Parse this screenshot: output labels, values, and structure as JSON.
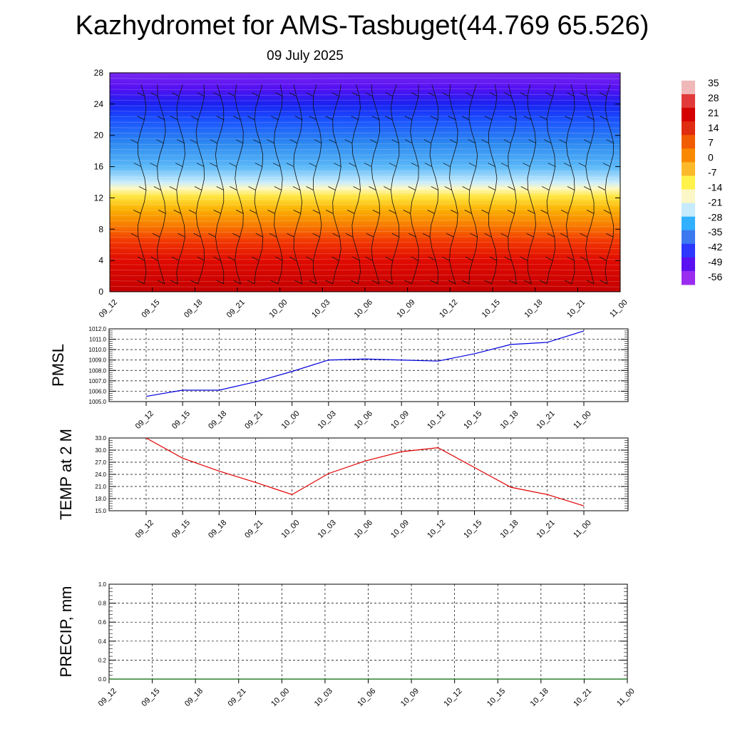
{
  "title": "Kazhydromet for AMS-Tasbuget(44.769 65.526)",
  "subtitle": "09 July 2025",
  "colors": {
    "pmsl_line": "#0000dd",
    "temp_line": "#e00000",
    "precip_line": "#006400",
    "grid": "#000000"
  },
  "chart_data": [
    {
      "type": "heatmap",
      "name": "vertical-profile",
      "x_ticks": [
        "09_12",
        "09_15",
        "09_18",
        "09_21",
        "10_00",
        "10_03",
        "10_06",
        "10_09",
        "10_12",
        "10_15",
        "10_18",
        "10_21",
        "11_00"
      ],
      "y_ticks": [
        "0",
        "4",
        "8",
        "12",
        "16",
        "20",
        "24",
        "28"
      ],
      "ylim": [
        0,
        28
      ],
      "colorbar_labels": [
        "35",
        "28",
        "21",
        "14",
        "7",
        "0",
        "-7",
        "-14",
        "-21",
        "-28",
        "-35",
        "-42",
        "-49",
        "-56"
      ],
      "colorbar_colors": [
        "#f0b8b8",
        "#e23a3a",
        "#d40000",
        "#e02c10",
        "#f25c00",
        "#f98a00",
        "#fcba2a",
        "#fff24a",
        "#fcf7c6",
        "#c6ebfc",
        "#30b0ff",
        "#3c78f0",
        "#2c38ff",
        "#5a10f0",
        "#9a2cf0"
      ],
      "band_stops": [
        {
          "h": 0,
          "color": "#c40000"
        },
        {
          "h": 4,
          "color": "#e00a00"
        },
        {
          "h": 6.5,
          "color": "#f23800"
        },
        {
          "h": 8.5,
          "color": "#f87c00"
        },
        {
          "h": 10.5,
          "color": "#fbb000"
        },
        {
          "h": 12.2,
          "color": "#ffe640"
        },
        {
          "h": 13.2,
          "color": "#fff8c0"
        },
        {
          "h": 14,
          "color": "#c8ecfc"
        },
        {
          "h": 16,
          "color": "#5ab8f8"
        },
        {
          "h": 19,
          "color": "#2c88f0"
        },
        {
          "h": 22,
          "color": "#1a50ff"
        },
        {
          "h": 24,
          "color": "#1a22f0"
        },
        {
          "h": 26,
          "color": "#5410f2"
        },
        {
          "h": 28,
          "color": "#7a28f0"
        }
      ]
    },
    {
      "type": "line",
      "name": "PMSL",
      "ylabel": "PMSL",
      "x_ticks": [
        "09_12",
        "09_15",
        "09_18",
        "09_21",
        "10_00",
        "10_03",
        "10_06",
        "10_09",
        "10_12",
        "10_15",
        "10_18",
        "10_21",
        "11_00"
      ],
      "y_ticks": [
        "1005.0",
        "1006.0",
        "1007.0",
        "1008.0",
        "1009.0",
        "1010.0",
        "1011.0",
        "1012.0"
      ],
      "ylim": [
        1005.0,
        1012.0
      ],
      "values": [
        1005.5,
        1006.1,
        1006.1,
        1006.9,
        1007.9,
        1009.0,
        1009.1,
        1009.0,
        1008.9,
        1009.6,
        1010.5,
        1010.7,
        1011.8
      ]
    },
    {
      "type": "line",
      "name": "TEMP at 2 M",
      "ylabel": "TEMP at 2 M",
      "x_ticks": [
        "09_12",
        "09_15",
        "09_18",
        "09_21",
        "10_00",
        "10_03",
        "10_06",
        "10_09",
        "10_12",
        "10_15",
        "10_18",
        "10_21",
        "11_00"
      ],
      "y_ticks": [
        "15.0",
        "18.0",
        "21.0",
        "24.0",
        "27.0",
        "30.0",
        "33.0"
      ],
      "ylim": [
        15.0,
        33.0
      ],
      "values": [
        33.0,
        28.0,
        24.8,
        22.0,
        19.0,
        24.2,
        27.3,
        29.6,
        30.6,
        25.7,
        20.8,
        19.0,
        16.2
      ]
    },
    {
      "type": "line",
      "name": "PRECIP, mm",
      "ylabel": "PRECIP, mm",
      "x_ticks": [
        "09_12",
        "09_15",
        "09_18",
        "09_21",
        "10_00",
        "10_03",
        "10_06",
        "10_09",
        "10_12",
        "10_15",
        "10_18",
        "10_21",
        "11_00"
      ],
      "y_ticks": [
        "0.0",
        "0.2",
        "0.4",
        "0.6",
        "0.8",
        "1.0"
      ],
      "ylim": [
        0.0,
        1.0
      ],
      "values": [
        0,
        0,
        0,
        0,
        0,
        0,
        0,
        0,
        0,
        0,
        0,
        0,
        0
      ]
    }
  ]
}
